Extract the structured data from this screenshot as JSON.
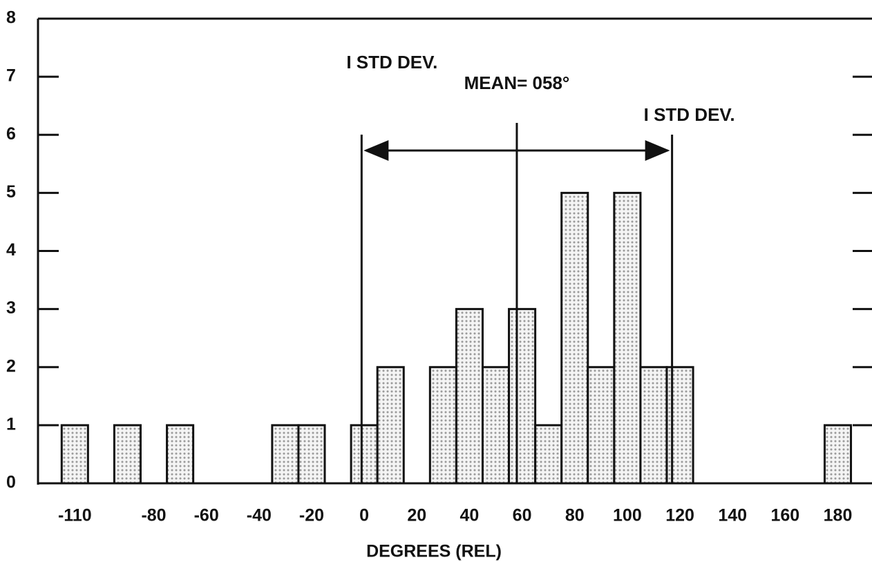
{
  "chart_data": {
    "type": "histogram",
    "x_label": "DEGREES (REL)",
    "bins": [
      -115,
      -105,
      -95,
      -85,
      -75,
      -65,
      -55,
      -45,
      -35,
      -25,
      -15,
      -5,
      5,
      15,
      25,
      35,
      45,
      55,
      65,
      75,
      85,
      95,
      105,
      115,
      125,
      135,
      145,
      155,
      165,
      175,
      185
    ],
    "values": [
      1,
      0,
      1,
      0,
      1,
      0,
      0,
      0,
      1,
      1,
      0,
      1,
      2,
      0,
      2,
      3,
      2,
      3,
      1,
      5,
      2,
      5,
      2,
      2,
      0,
      0,
      0,
      0,
      0,
      1
    ],
    "color": "#9a9a9a",
    "xlim": [
      -124,
      193
    ],
    "ylim": [
      0,
      8
    ],
    "xticks": [
      -110,
      -80,
      -60,
      -40,
      -20,
      0,
      20,
      40,
      60,
      80,
      100,
      120,
      140,
      160,
      180
    ],
    "yticks": [
      0,
      1,
      2,
      3,
      4,
      5,
      6,
      7,
      8
    ],
    "grid": false,
    "annotations": [
      {
        "text": "I STD DEV.",
        "x": -1
      },
      {
        "text": "MEAN= 058°",
        "x": 58
      },
      {
        "text": "I STD DEV.",
        "x": 117
      }
    ]
  }
}
